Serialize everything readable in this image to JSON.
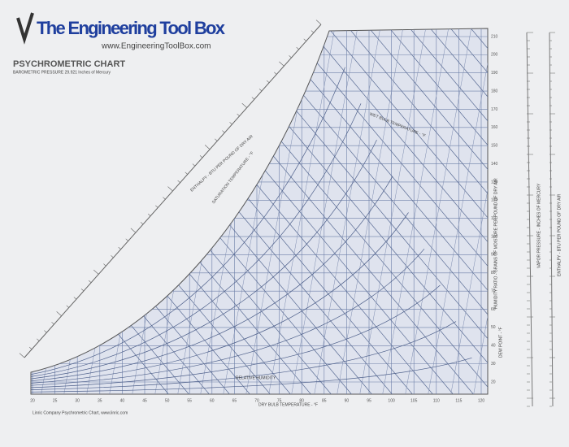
{
  "header": {
    "brand": "The Engineering Tool Box",
    "url": "www.EngineeringToolBox.com",
    "title": "PSYCHROMETRIC CHART",
    "subtitle": "BAROMETRIC PRESSURE 29.921 Inches of Mercury"
  },
  "axes": {
    "dry_bulb": {
      "label": "DRY BULB TEMPERATURE - °F",
      "ticks": [
        "20",
        "25",
        "30",
        "35",
        "40",
        "45",
        "50",
        "55",
        "60",
        "65",
        "70",
        "75",
        "80",
        "85",
        "90",
        "95",
        "100",
        "105",
        "110",
        "115",
        "120"
      ]
    },
    "humidity_ratio": {
      "label": "HUMIDITY RATIO - GRAINS OF MOISTURE PER POUND OF DRY AIR",
      "ticks": [
        "210",
        "200",
        "190",
        "180",
        "170",
        "160",
        "150",
        "140",
        "130",
        "120",
        "110",
        "100",
        "90",
        "80",
        "70",
        "60",
        "50",
        "40",
        "30",
        "20"
      ]
    },
    "enthalpy": {
      "label": "ENTHALPY - BTU PER POUND OF DRY AIR"
    },
    "saturation": {
      "label": "SATURATION TEMPERATURE - °F"
    },
    "wet_bulb": {
      "label": "WET BULB TEMPERATURE - °F"
    },
    "relative_humidity": {
      "label": "RELATIVE HUMIDITY"
    },
    "dew_point": {
      "label": "DEW POINT - °F"
    },
    "vapor_pressure": {
      "label": "VAPOR PRESSURE - INCHES OF MERCURY"
    },
    "enthalpy_right": {
      "label": "ENTHALPY - BTU PER POUND OF DRY AIR"
    }
  },
  "footer": "Linric Company Psychrometric Chart, www.linric.com"
}
